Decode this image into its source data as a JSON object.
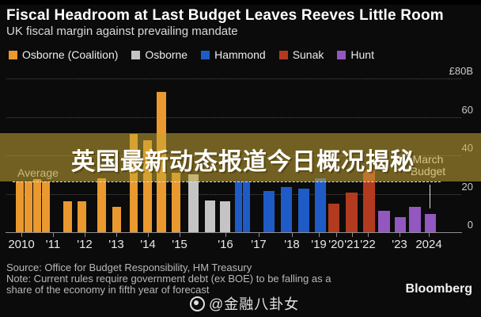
{
  "header": {
    "title": "Fiscal Headroom at Last Budget Leaves Reeves Little Room",
    "subtitle": "UK fiscal margin against prevailing mandate"
  },
  "legend": {
    "items": [
      {
        "label": "Osborne (Coalition)",
        "key": "osborne_coalition",
        "color": "#E9992E"
      },
      {
        "label": "Osborne",
        "key": "osborne",
        "color": "#C4C4C4"
      },
      {
        "label": "Hammond",
        "key": "hammond",
        "color": "#1F5BC7"
      },
      {
        "label": "Sunak",
        "key": "sunak",
        "color": "#B23A1F"
      },
      {
        "label": "Hunt",
        "key": "hunt",
        "color": "#9357C0"
      }
    ]
  },
  "overlay": {
    "text": "英国最新动态报道今日概况揭秘"
  },
  "chart_data": {
    "type": "bar",
    "title": "Fiscal Headroom at Last Budget Leaves Reeves Little Room",
    "subtitle": "UK fiscal margin against prevailing mandate",
    "ylabel": "£B",
    "ylim": [
      0,
      80
    ],
    "grid": "dotted horizontal",
    "legend_position": "top",
    "y_ticks": [
      {
        "label": "£80B",
        "value": 80
      },
      {
        "label": "60",
        "value": 60
      },
      {
        "label": "40",
        "value": 40
      },
      {
        "label": "20",
        "value": 20
      },
      {
        "label": "0",
        "value": 0
      }
    ],
    "x_ticks": [
      {
        "label": "2010",
        "x": 27
      },
      {
        "label": "'11",
        "x": 67
      },
      {
        "label": "'12",
        "x": 107
      },
      {
        "label": "'13",
        "x": 147
      },
      {
        "label": "'14",
        "x": 187
      },
      {
        "label": "'15",
        "x": 227
      },
      {
        "label": "'16",
        "x": 285
      },
      {
        "label": "'17",
        "x": 327
      },
      {
        "label": "'18",
        "x": 369
      },
      {
        "label": "'19",
        "x": 403
      },
      {
        "label": "'20",
        "x": 425
      },
      {
        "label": "'21",
        "x": 445
      },
      {
        "label": "'22",
        "x": 465
      },
      {
        "label": "'23",
        "x": 505
      },
      {
        "label": "2024",
        "x": 542
      }
    ],
    "average_line": {
      "label": "Average",
      "value": 26.5
    },
    "annotation": {
      "line1": "March",
      "line2": "Budget",
      "x": 543,
      "points_to": "last 2024 bar"
    },
    "series": [
      {
        "name": "Osborne (Coalition)",
        "key": "osborne_coalition",
        "values": [
          26.5,
          26.5,
          27.5,
          26.5,
          16,
          16,
          28,
          13,
          51,
          48,
          73,
          31
        ]
      },
      {
        "name": "Osborne",
        "key": "osborne",
        "values": [
          30,
          16.5,
          16
        ]
      },
      {
        "name": "Hammond",
        "key": "hammond",
        "values": [
          26.5,
          26.5,
          21.5,
          23.5,
          22.5,
          28
        ]
      },
      {
        "name": "Sunak",
        "key": "sunak",
        "values": [
          15,
          20.5,
          32
        ]
      },
      {
        "name": "Hunt",
        "key": "hunt",
        "values": [
          11,
          8,
          13,
          9.5
        ]
      }
    ],
    "bars": [
      {
        "x": 20,
        "w": 10,
        "value": 26.5,
        "group": "osborne_coalition"
      },
      {
        "x": 31,
        "w": 10,
        "value": 26.5,
        "group": "osborne_coalition"
      },
      {
        "x": 42,
        "w": 10,
        "value": 27.5,
        "group": "osborne_coalition"
      },
      {
        "x": 53,
        "w": 10,
        "value": 26.5,
        "group": "osborne_coalition"
      },
      {
        "x": 80,
        "w": 11,
        "value": 16,
        "group": "osborne_coalition"
      },
      {
        "x": 98,
        "w": 11,
        "value": 16,
        "group": "osborne_coalition"
      },
      {
        "x": 123,
        "w": 11,
        "value": 28,
        "group": "osborne_coalition"
      },
      {
        "x": 142,
        "w": 11,
        "value": 13,
        "group": "osborne_coalition"
      },
      {
        "x": 164,
        "w": 10,
        "value": 51,
        "group": "osborne_coalition"
      },
      {
        "x": 181,
        "w": 11,
        "value": 48,
        "group": "osborne_coalition"
      },
      {
        "x": 198,
        "w": 12,
        "value": 73,
        "group": "osborne_coalition"
      },
      {
        "x": 217,
        "w": 11,
        "value": 31,
        "group": "osborne_coalition"
      },
      {
        "x": 238,
        "w": 13,
        "value": 30,
        "group": "osborne"
      },
      {
        "x": 259,
        "w": 13,
        "value": 16.5,
        "group": "osborne"
      },
      {
        "x": 278,
        "w": 13,
        "value": 16,
        "group": "osborne"
      },
      {
        "x": 297,
        "w": 9,
        "value": 26.5,
        "group": "hammond"
      },
      {
        "x": 307,
        "w": 9,
        "value": 26.5,
        "group": "hammond"
      },
      {
        "x": 333,
        "w": 14,
        "value": 21.5,
        "group": "hammond"
      },
      {
        "x": 355,
        "w": 14,
        "value": 23.5,
        "group": "hammond"
      },
      {
        "x": 377,
        "w": 14,
        "value": 22.5,
        "group": "hammond"
      },
      {
        "x": 398,
        "w": 14,
        "value": 28,
        "group": "hammond"
      },
      {
        "x": 415,
        "w": 14,
        "value": 15,
        "group": "sunak"
      },
      {
        "x": 437,
        "w": 15,
        "value": 20.5,
        "group": "sunak"
      },
      {
        "x": 459,
        "w": 15,
        "value": 32,
        "group": "sunak"
      },
      {
        "x": 478,
        "w": 15,
        "value": 11,
        "group": "hunt"
      },
      {
        "x": 499,
        "w": 14,
        "value": 8,
        "group": "hunt"
      },
      {
        "x": 517,
        "w": 15,
        "value": 13,
        "group": "hunt"
      },
      {
        "x": 537,
        "w": 14,
        "value": 9.5,
        "group": "hunt"
      }
    ]
  },
  "footer": {
    "source": "Source: Office for Budget Responsibility, HM Treasury",
    "note_line1": "Note: Current rules require government debt (ex BOE) to be falling as a",
    "note_line2": "share of the economy in fifth year of forecast",
    "brand": "Bloomberg"
  },
  "watermark": {
    "icon": "weibo-eye-icon",
    "handle": "@金融八卦女"
  }
}
